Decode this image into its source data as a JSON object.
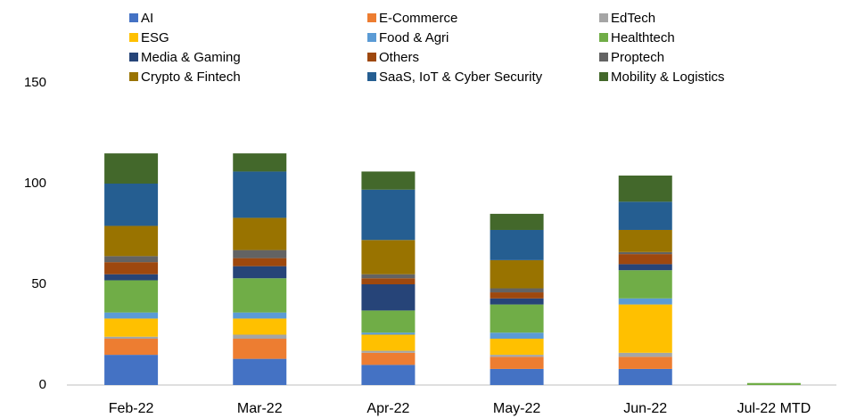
{
  "chart_data": {
    "type": "stacked_bar",
    "categories": [
      "Feb-22",
      "Mar-22",
      "Apr-22",
      "May-22",
      "Jun-22",
      "Jul-22 MTD"
    ],
    "ylim": [
      0,
      150
    ],
    "yticks": [
      0,
      50,
      100,
      150
    ],
    "grid": false,
    "legend": "top",
    "series": [
      {
        "name": "AI",
        "color": "#4472c4",
        "values": [
          15,
          13,
          10,
          8,
          8,
          0
        ]
      },
      {
        "name": "E-Commerce",
        "color": "#ed7d31",
        "values": [
          8,
          10,
          6,
          6,
          6,
          0
        ]
      },
      {
        "name": "EdTech",
        "color": "#a5a5a5",
        "values": [
          1,
          2,
          1,
          1,
          2,
          0
        ]
      },
      {
        "name": "ESG",
        "color": "#ffc000",
        "values": [
          9,
          8,
          8,
          8,
          24,
          0
        ]
      },
      {
        "name": "Food & Agri",
        "color": "#5b9bd5",
        "values": [
          3,
          3,
          1,
          3,
          3,
          0
        ]
      },
      {
        "name": "Healthtech",
        "color": "#70ad47",
        "values": [
          16,
          17,
          11,
          14,
          14,
          1
        ]
      },
      {
        "name": "Media & Gaming",
        "color": "#264478",
        "values": [
          3,
          6,
          13,
          3,
          3,
          0
        ]
      },
      {
        "name": "Others",
        "color": "#9e480e",
        "values": [
          6,
          4,
          3,
          3,
          5,
          0
        ]
      },
      {
        "name": "Proptech",
        "color": "#636363",
        "values": [
          3,
          4,
          2,
          2,
          1,
          0
        ]
      },
      {
        "name": "Crypto & Fintech",
        "color": "#997300",
        "values": [
          15,
          16,
          17,
          14,
          11,
          0
        ]
      },
      {
        "name": "SaaS, IoT & Cyber Security",
        "color": "#255e91",
        "values": [
          21,
          23,
          25,
          15,
          14,
          0
        ]
      },
      {
        "name": "Mobility & Logistics",
        "color": "#43682b",
        "values": [
          15,
          9,
          9,
          8,
          13,
          0
        ]
      }
    ]
  }
}
